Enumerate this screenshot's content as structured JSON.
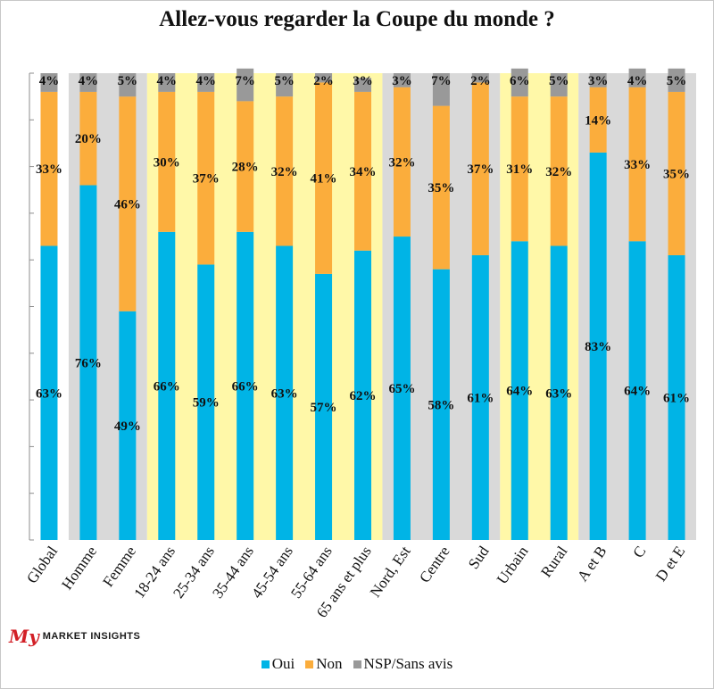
{
  "logo": {
    "my": "My",
    "market": "MARKET INSIGHTS"
  },
  "colors": {
    "oui": "#00b4e6",
    "non": "#fbad3c",
    "nsp": "#999999",
    "panel_gray": "#d9d9d9",
    "panel_yellow": "#fff8a8",
    "panel_white": "#ffffff",
    "grid": "#8c8c8c"
  },
  "chart_data": {
    "type": "bar",
    "stacked": true,
    "title": "Allez-vous regarder la Coupe du monde ?",
    "categories": [
      "Global",
      "Homme",
      "Femme",
      "18-24 ans",
      "25-34 ans",
      "35-44 ans",
      "45-54 ans",
      "55-64 ans",
      "65 ans et plus",
      "Nord, Est",
      "Centre",
      "Sud",
      "Urbain",
      "Rural",
      "A et B",
      "C",
      "D et E"
    ],
    "series": [
      {
        "name": "Oui",
        "values": [
          63,
          76,
          49,
          66,
          59,
          66,
          63,
          57,
          62,
          65,
          58,
          61,
          64,
          63,
          83,
          64,
          61
        ]
      },
      {
        "name": "Non",
        "values": [
          33,
          20,
          46,
          30,
          37,
          28,
          32,
          41,
          34,
          32,
          35,
          37,
          31,
          32,
          14,
          33,
          35
        ]
      },
      {
        "name": "NSP/Sans avis",
        "values": [
          4,
          4,
          5,
          4,
          4,
          7,
          5,
          2,
          3,
          3,
          7,
          2,
          6,
          5,
          3,
          4,
          5
        ]
      }
    ],
    "data_labels": {
      "oui": [
        "63%",
        "76%",
        "49%",
        "66%",
        "59%",
        "66%",
        "63%",
        "57%",
        "62%",
        "65%",
        "58%",
        "61%",
        "64%",
        "63%",
        "83%",
        "64%",
        "61%"
      ],
      "non": [
        "33%",
        "20%",
        "46%",
        "30%",
        "37%",
        "28%",
        "32%",
        "41%",
        "34%",
        "32%",
        "35%",
        "37%",
        "31%",
        "32%",
        "14%",
        "33%",
        "35%"
      ],
      "nsp": [
        "4%",
        "4%",
        "5%",
        "4%",
        "4%",
        "7%",
        "5%",
        "2%",
        "3%",
        "3%",
        "7%",
        "2%",
        "6%",
        "5%",
        "3%",
        "4%",
        "5%"
      ]
    },
    "panel_groups": [
      {
        "from": 0,
        "to": 0,
        "style": "white"
      },
      {
        "from": 1,
        "to": 2,
        "style": "gray"
      },
      {
        "from": 3,
        "to": 8,
        "style": "yellow"
      },
      {
        "from": 9,
        "to": 11,
        "style": "gray"
      },
      {
        "from": 12,
        "to": 13,
        "style": "yellow"
      },
      {
        "from": 14,
        "to": 16,
        "style": "gray"
      }
    ],
    "ylim": [
      0,
      100
    ],
    "grid": true,
    "legend": "bottom"
  }
}
